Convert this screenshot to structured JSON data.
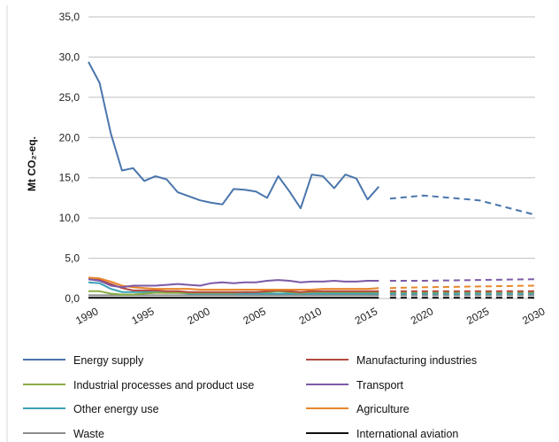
{
  "chart_data": {
    "type": "line",
    "title": "",
    "xlabel": "",
    "ylabel": "Mt CO₂-eq.",
    "ylim": [
      0,
      35
    ],
    "xlim": [
      1990,
      2030
    ],
    "y_ticks": [
      "0,0",
      "5,0",
      "10,0",
      "15,0",
      "20,0",
      "25,0",
      "30,0",
      "35,0"
    ],
    "x_ticks": [
      "1990",
      "1995",
      "2000",
      "2005",
      "2010",
      "2015",
      "2020",
      "2025",
      "2030"
    ],
    "grid": true,
    "legend_position": "bottom",
    "series": [
      {
        "name": "Energy supply",
        "color": "#4a76ad",
        "historical": [
          [
            1990,
            29.4
          ],
          [
            1991,
            26.8
          ],
          [
            1992,
            20.5
          ],
          [
            1993,
            15.9
          ],
          [
            1994,
            16.2
          ],
          [
            1995,
            14.6
          ],
          [
            1996,
            15.2
          ],
          [
            1997,
            14.8
          ],
          [
            1998,
            13.2
          ],
          [
            1999,
            12.7
          ],
          [
            2000,
            12.2
          ],
          [
            2001,
            11.9
          ],
          [
            2002,
            11.7
          ],
          [
            2003,
            13.6
          ],
          [
            2004,
            13.5
          ],
          [
            2005,
            13.3
          ],
          [
            2006,
            12.5
          ],
          [
            2007,
            15.2
          ],
          [
            2008,
            13.3
          ],
          [
            2009,
            11.2
          ],
          [
            2010,
            15.4
          ],
          [
            2011,
            15.2
          ],
          [
            2012,
            13.7
          ],
          [
            2013,
            15.4
          ],
          [
            2014,
            14.9
          ],
          [
            2015,
            12.3
          ],
          [
            2016,
            13.9
          ]
        ],
        "projection": [
          [
            2017,
            12.4
          ],
          [
            2020,
            12.8
          ],
          [
            2025,
            12.2
          ],
          [
            2030,
            10.4
          ]
        ]
      },
      {
        "name": "Manufacturing industries",
        "color": "#b5473f",
        "historical": [
          [
            1990,
            2.4
          ],
          [
            1991,
            2.3
          ],
          [
            1992,
            1.8
          ],
          [
            1993,
            1.3
          ],
          [
            1994,
            1.0
          ],
          [
            1995,
            1.0
          ],
          [
            1996,
            1.0
          ],
          [
            1997,
            0.9
          ],
          [
            1998,
            0.9
          ],
          [
            1999,
            0.8
          ],
          [
            2000,
            0.8
          ],
          [
            2001,
            0.8
          ],
          [
            2002,
            0.8
          ],
          [
            2003,
            0.8
          ],
          [
            2004,
            0.8
          ],
          [
            2005,
            0.8
          ],
          [
            2006,
            0.9
          ],
          [
            2007,
            1.0
          ],
          [
            2008,
            0.9
          ],
          [
            2009,
            0.8
          ],
          [
            2010,
            0.9
          ],
          [
            2011,
            0.9
          ],
          [
            2012,
            0.9
          ],
          [
            2013,
            0.9
          ],
          [
            2014,
            0.9
          ],
          [
            2015,
            0.9
          ],
          [
            2016,
            0.9
          ]
        ],
        "projection": [
          [
            2017,
            0.9
          ],
          [
            2020,
            0.9
          ],
          [
            2025,
            0.9
          ],
          [
            2030,
            0.9
          ]
        ]
      },
      {
        "name": "Industrial processes and product use",
        "color": "#8aad45",
        "historical": [
          [
            1990,
            0.9
          ],
          [
            1991,
            0.9
          ],
          [
            1992,
            0.6
          ],
          [
            1993,
            0.5
          ],
          [
            1994,
            0.5
          ],
          [
            1995,
            0.6
          ],
          [
            1996,
            0.7
          ],
          [
            1997,
            0.7
          ],
          [
            1998,
            0.7
          ],
          [
            1999,
            0.7
          ],
          [
            2000,
            0.7
          ],
          [
            2001,
            0.7
          ],
          [
            2002,
            0.7
          ],
          [
            2003,
            0.7
          ],
          [
            2004,
            0.8
          ],
          [
            2005,
            0.8
          ],
          [
            2006,
            0.8
          ],
          [
            2007,
            0.9
          ],
          [
            2008,
            0.8
          ],
          [
            2009,
            0.7
          ],
          [
            2010,
            0.8
          ],
          [
            2011,
            0.8
          ],
          [
            2012,
            0.8
          ],
          [
            2013,
            0.8
          ],
          [
            2014,
            0.8
          ],
          [
            2015,
            0.8
          ],
          [
            2016,
            0.8
          ]
        ],
        "projection": [
          [
            2017,
            0.8
          ],
          [
            2020,
            0.8
          ],
          [
            2025,
            0.8
          ],
          [
            2030,
            0.8
          ]
        ]
      },
      {
        "name": "Transport",
        "color": "#7b5aa6",
        "historical": [
          [
            1990,
            2.4
          ],
          [
            1991,
            2.2
          ],
          [
            1992,
            1.6
          ],
          [
            1993,
            1.4
          ],
          [
            1994,
            1.6
          ],
          [
            1995,
            1.6
          ],
          [
            1996,
            1.6
          ],
          [
            1997,
            1.7
          ],
          [
            1998,
            1.8
          ],
          [
            1999,
            1.7
          ],
          [
            2000,
            1.6
          ],
          [
            2001,
            1.9
          ],
          [
            2002,
            2.0
          ],
          [
            2003,
            1.9
          ],
          [
            2004,
            2.0
          ],
          [
            2005,
            2.0
          ],
          [
            2006,
            2.2
          ],
          [
            2007,
            2.3
          ],
          [
            2008,
            2.2
          ],
          [
            2009,
            2.0
          ],
          [
            2010,
            2.1
          ],
          [
            2011,
            2.1
          ],
          [
            2012,
            2.2
          ],
          [
            2013,
            2.1
          ],
          [
            2014,
            2.1
          ],
          [
            2015,
            2.2
          ],
          [
            2016,
            2.2
          ]
        ],
        "projection": [
          [
            2017,
            2.2
          ],
          [
            2020,
            2.2
          ],
          [
            2025,
            2.3
          ],
          [
            2030,
            2.4
          ]
        ]
      },
      {
        "name": "Other energy use",
        "color": "#3aa1b5",
        "historical": [
          [
            1990,
            2.0
          ],
          [
            1991,
            1.9
          ],
          [
            1992,
            1.2
          ],
          [
            1993,
            0.8
          ],
          [
            1994,
            0.8
          ],
          [
            1995,
            0.8
          ],
          [
            1996,
            0.8
          ],
          [
            1997,
            0.7
          ],
          [
            1998,
            0.7
          ],
          [
            1999,
            0.6
          ],
          [
            2000,
            0.6
          ],
          [
            2001,
            0.6
          ],
          [
            2002,
            0.6
          ],
          [
            2003,
            0.6
          ],
          [
            2004,
            0.6
          ],
          [
            2005,
            0.6
          ],
          [
            2006,
            0.6
          ],
          [
            2007,
            0.6
          ],
          [
            2008,
            0.6
          ],
          [
            2009,
            0.6
          ],
          [
            2010,
            0.6
          ],
          [
            2011,
            0.6
          ],
          [
            2012,
            0.6
          ],
          [
            2013,
            0.6
          ],
          [
            2014,
            0.6
          ],
          [
            2015,
            0.6
          ],
          [
            2016,
            0.6
          ]
        ],
        "projection": [
          [
            2017,
            0.6
          ],
          [
            2020,
            0.6
          ],
          [
            2025,
            0.6
          ],
          [
            2030,
            0.6
          ]
        ]
      },
      {
        "name": "Agriculture",
        "color": "#e8862a",
        "historical": [
          [
            1990,
            2.6
          ],
          [
            1991,
            2.5
          ],
          [
            1992,
            2.1
          ],
          [
            1993,
            1.6
          ],
          [
            1994,
            1.4
          ],
          [
            1995,
            1.3
          ],
          [
            1996,
            1.2
          ],
          [
            1997,
            1.2
          ],
          [
            1998,
            1.2
          ],
          [
            1999,
            1.2
          ],
          [
            2000,
            1.1
          ],
          [
            2001,
            1.1
          ],
          [
            2002,
            1.1
          ],
          [
            2003,
            1.1
          ],
          [
            2004,
            1.1
          ],
          [
            2005,
            1.1
          ],
          [
            2006,
            1.1
          ],
          [
            2007,
            1.1
          ],
          [
            2008,
            1.1
          ],
          [
            2009,
            1.1
          ],
          [
            2010,
            1.1
          ],
          [
            2011,
            1.2
          ],
          [
            2012,
            1.2
          ],
          [
            2013,
            1.2
          ],
          [
            2014,
            1.2
          ],
          [
            2015,
            1.2
          ],
          [
            2016,
            1.3
          ]
        ],
        "projection": [
          [
            2017,
            1.3
          ],
          [
            2020,
            1.4
          ],
          [
            2025,
            1.5
          ],
          [
            2030,
            1.6
          ]
        ]
      },
      {
        "name": "Waste",
        "color": "#8c8c8c",
        "historical": [
          [
            1990,
            0.4
          ],
          [
            1991,
            0.4
          ],
          [
            1992,
            0.4
          ],
          [
            1993,
            0.4
          ],
          [
            1994,
            0.4
          ],
          [
            1995,
            0.4
          ],
          [
            1996,
            0.4
          ],
          [
            1997,
            0.4
          ],
          [
            1998,
            0.4
          ],
          [
            1999,
            0.4
          ],
          [
            2000,
            0.4
          ],
          [
            2001,
            0.4
          ],
          [
            2002,
            0.4
          ],
          [
            2003,
            0.4
          ],
          [
            2004,
            0.4
          ],
          [
            2005,
            0.4
          ],
          [
            2006,
            0.4
          ],
          [
            2007,
            0.4
          ],
          [
            2008,
            0.4
          ],
          [
            2009,
            0.4
          ],
          [
            2010,
            0.4
          ],
          [
            2011,
            0.4
          ],
          [
            2012,
            0.4
          ],
          [
            2013,
            0.4
          ],
          [
            2014,
            0.4
          ],
          [
            2015,
            0.4
          ],
          [
            2016,
            0.4
          ]
        ],
        "projection": [
          [
            2017,
            0.4
          ],
          [
            2020,
            0.4
          ],
          [
            2025,
            0.4
          ],
          [
            2030,
            0.4
          ]
        ]
      },
      {
        "name": "International aviation",
        "color": "#111111",
        "historical": [
          [
            1990,
            0.1
          ],
          [
            1991,
            0.1
          ],
          [
            1992,
            0.1
          ],
          [
            1993,
            0.1
          ],
          [
            1994,
            0.1
          ],
          [
            1995,
            0.1
          ],
          [
            1996,
            0.1
          ],
          [
            1997,
            0.1
          ],
          [
            1998,
            0.1
          ],
          [
            1999,
            0.1
          ],
          [
            2000,
            0.1
          ],
          [
            2001,
            0.1
          ],
          [
            2002,
            0.1
          ],
          [
            2003,
            0.1
          ],
          [
            2004,
            0.1
          ],
          [
            2005,
            0.1
          ],
          [
            2006,
            0.1
          ],
          [
            2007,
            0.1
          ],
          [
            2008,
            0.1
          ],
          [
            2009,
            0.1
          ],
          [
            2010,
            0.1
          ],
          [
            2011,
            0.1
          ],
          [
            2012,
            0.1
          ],
          [
            2013,
            0.1
          ],
          [
            2014,
            0.1
          ],
          [
            2015,
            0.1
          ],
          [
            2016,
            0.1
          ]
        ],
        "projection": [
          [
            2017,
            0.1
          ],
          [
            2020,
            0.1
          ],
          [
            2025,
            0.1
          ],
          [
            2030,
            0.1
          ]
        ]
      }
    ]
  }
}
